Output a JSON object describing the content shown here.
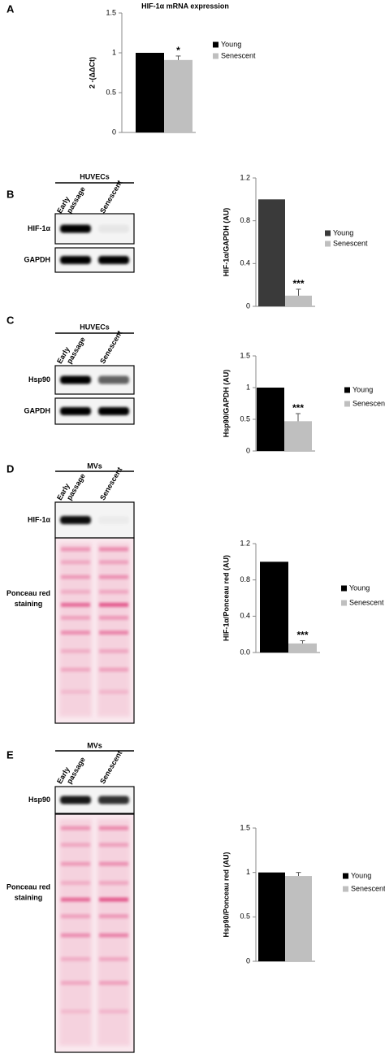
{
  "chart_data": [
    {
      "type": "bar",
      "title": "HIF-1α mRNA expression",
      "ylabel": "2 -(ΔΔCt)",
      "ylim": [
        0,
        1.5
      ],
      "yticks": [
        0,
        0.5,
        1,
        1.5
      ],
      "series": [
        {
          "name": "Young",
          "color": "#000000",
          "values": [
            1
          ]
        },
        {
          "name": "Senescent",
          "color": "#bfbfbf",
          "values": [
            0.91
          ],
          "errors": [
            0.05
          ],
          "annotation": "*"
        }
      ]
    },
    {
      "type": "bar",
      "ylabel": "HIF-1α/GAPDH (AU)",
      "ylim": [
        0,
        1.2
      ],
      "yticks": [
        0,
        0.4,
        0.8,
        1.2
      ],
      "series": [
        {
          "name": "Young",
          "color": "#3a3a3a",
          "values": [
            1
          ]
        },
        {
          "name": "Senescent",
          "color": "#bfbfbf",
          "values": [
            0.1
          ],
          "errors": [
            0.06
          ],
          "annotation": "***"
        }
      ]
    },
    {
      "type": "bar",
      "ylabel": "Hsp90/GAPDH (AU)",
      "ylim": [
        0,
        1.5
      ],
      "yticks": [
        0,
        0.5,
        1,
        1.5
      ],
      "series": [
        {
          "name": "Young",
          "color": "#000000",
          "values": [
            1
          ]
        },
        {
          "name": "Senescent",
          "color": "#bfbfbf",
          "values": [
            0.47
          ],
          "errors": [
            0.12
          ],
          "annotation": "***"
        }
      ]
    },
    {
      "type": "bar",
      "ylabel": "HIF-1α/Ponceau red (AU)",
      "ylim": [
        0,
        1.2
      ],
      "yticks": [
        {
          "value": 0,
          "label": "0.0"
        },
        0.4,
        0.8,
        1.2
      ],
      "series": [
        {
          "name": "Young",
          "color": "#000000",
          "values": [
            1
          ]
        },
        {
          "name": "Senescent",
          "color": "#bfbfbf",
          "values": [
            0.1
          ],
          "errors": [
            0.03
          ],
          "annotation": "***"
        }
      ]
    },
    {
      "type": "bar",
      "ylabel": "Hsp90/Ponceau red (AU)",
      "ylim": [
        0,
        1.5
      ],
      "yticks": [
        0,
        0.5,
        1,
        1.5
      ],
      "series": [
        {
          "name": "Young",
          "color": "#000000",
          "values": [
            1
          ]
        },
        {
          "name": "Senescent",
          "color": "#bfbfbf",
          "values": [
            0.96
          ],
          "errors": [
            0.04
          ]
        }
      ]
    }
  ],
  "panels": [
    {
      "letter": "A"
    },
    {
      "letter": "B",
      "group": "HUVECs",
      "lanes": [
        [
          "Early",
          "passage"
        ],
        [
          "Senescent"
        ]
      ],
      "blots": [
        {
          "label": [
            "HIF-1α"
          ]
        },
        {
          "label": [
            "GAPDH"
          ]
        }
      ]
    },
    {
      "letter": "C",
      "group": "HUVECs",
      "lanes": [
        [
          "Early",
          "passage"
        ],
        [
          "Senescent"
        ]
      ],
      "blots": [
        {
          "label": [
            "Hsp90"
          ]
        },
        {
          "label": [
            "GAPDH"
          ]
        }
      ]
    },
    {
      "letter": "D",
      "group": "MVs",
      "lanes": [
        [
          "Early",
          "passage"
        ],
        [
          "Senescent"
        ]
      ],
      "blots": [
        {
          "label": [
            "HIF-1α"
          ]
        },
        {
          "label": [
            "Ponceau red",
            "staining"
          ]
        }
      ]
    },
    {
      "letter": "E",
      "group": "MVs",
      "lanes": [
        [
          "Early",
          "passage"
        ],
        [
          "Senescent"
        ]
      ],
      "blots": [
        {
          "label": [
            "Hsp90"
          ]
        },
        {
          "label": [
            "Ponceau red",
            "staining"
          ]
        }
      ]
    }
  ]
}
